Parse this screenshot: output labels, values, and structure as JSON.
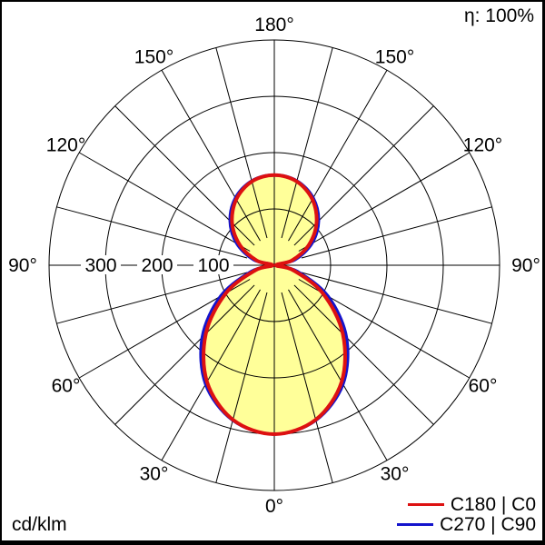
{
  "frame": {
    "background": "#ffffff",
    "border_color": "#000000"
  },
  "header": {
    "efficiency_label": "η: 100%"
  },
  "footer": {
    "units_label": "cd/klm"
  },
  "legend": {
    "items": [
      {
        "label": "C180 | C0",
        "color": "#dd1111"
      },
      {
        "label": "C270 | C90",
        "color": "#1414cc"
      }
    ]
  },
  "chart_data": {
    "type": "polar",
    "subtype": "luminous-intensity-distribution",
    "units": "cd/klm",
    "efficiency_text": "η: 100%",
    "grid_color": "#000000",
    "fill_color": "#ffff99",
    "radial_axis": {
      "ticks": [
        100,
        200,
        300
      ],
      "max": 400
    },
    "angle_axis": {
      "grid_step_deg": 15,
      "label_step_deg": 30,
      "labels": [
        "0°",
        "30°",
        "60°",
        "90°",
        "120°",
        "150°",
        "180°"
      ],
      "mirrored_left_right": true
    },
    "series": [
      {
        "name": "C180 | C0",
        "color": "#dd1111",
        "stroke_width": 4,
        "angles_deg": [
          0,
          15,
          30,
          45,
          60,
          75,
          90,
          105,
          120,
          135,
          150,
          165,
          180
        ],
        "values": [
          300,
          284,
          239,
          172,
          99,
          35,
          3,
          32,
          70,
          106,
          135,
          154,
          160
        ]
      },
      {
        "name": "C270 | C90",
        "color": "#1414cc",
        "stroke_width": 3.5,
        "angles_deg": [
          0,
          15,
          30,
          45,
          60,
          75,
          90,
          105,
          120,
          135,
          150,
          165,
          180
        ],
        "values": [
          300,
          285,
          244,
          181,
          110,
          42,
          4,
          38,
          77,
          111,
          138,
          155,
          160
        ]
      }
    ]
  }
}
